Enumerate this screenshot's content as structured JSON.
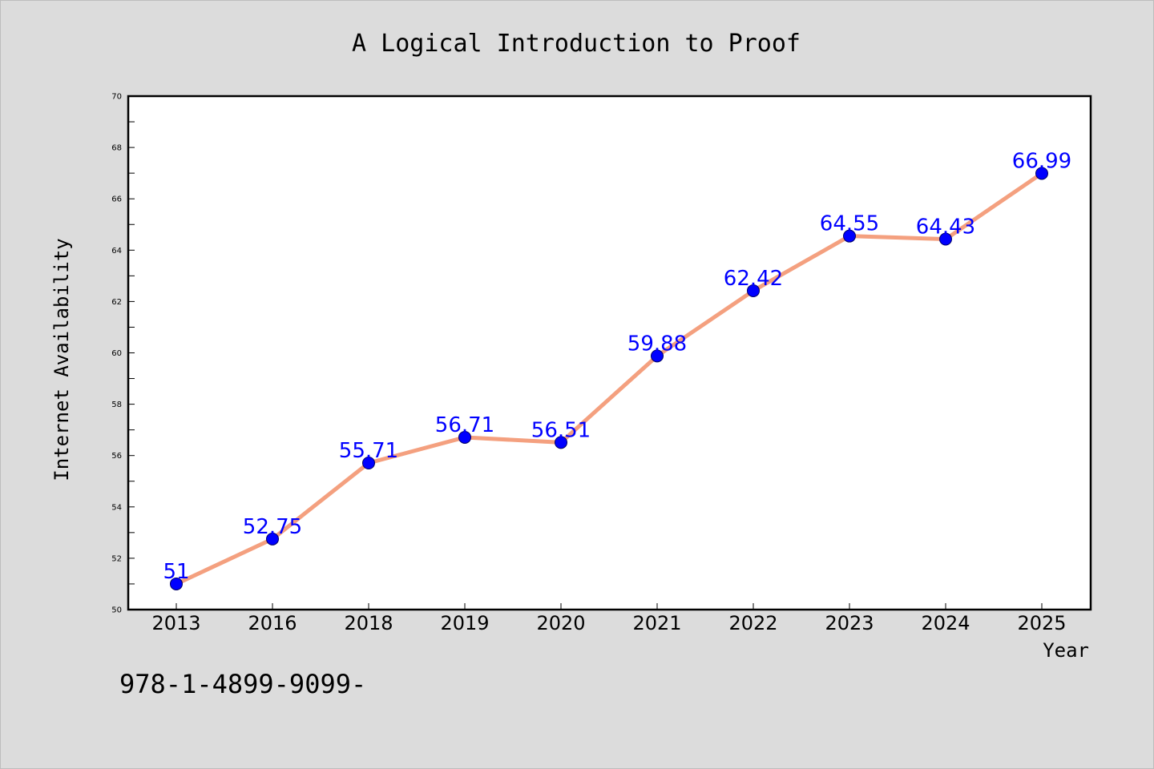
{
  "chart_data": {
    "type": "line",
    "title": "A Logical Introduction to Proof",
    "xlabel": "Year",
    "ylabel": "Internet Availability",
    "categories": [
      "2013",
      "2016",
      "2018",
      "2019",
      "2020",
      "2021",
      "2022",
      "2023",
      "2024",
      "2025"
    ],
    "series": [
      {
        "values": [
          51,
          52.75,
          55.71,
          56.71,
          56.51,
          59.88,
          62.42,
          64.55,
          64.43,
          66.99
        ],
        "labels": [
          "51",
          "52.75",
          "55.71",
          "56.71",
          "56.51",
          "59.88",
          "62.42",
          "64.55",
          "64.43",
          "66.99"
        ]
      }
    ],
    "ylim": [
      50,
      70
    ],
    "yticks": [
      "50",
      "52",
      "54",
      "56",
      "58",
      "60",
      "62",
      "64",
      "66",
      "68",
      "70"
    ],
    "grid": false,
    "colors": {
      "line": "#f4a07f",
      "marker": "#0000ff",
      "marker_edge": "#000066",
      "data_label": "#0000ff",
      "background": "#dcdcdc",
      "plot_background": "#ffffff"
    }
  },
  "footnote": "978-1-4899-9099-"
}
